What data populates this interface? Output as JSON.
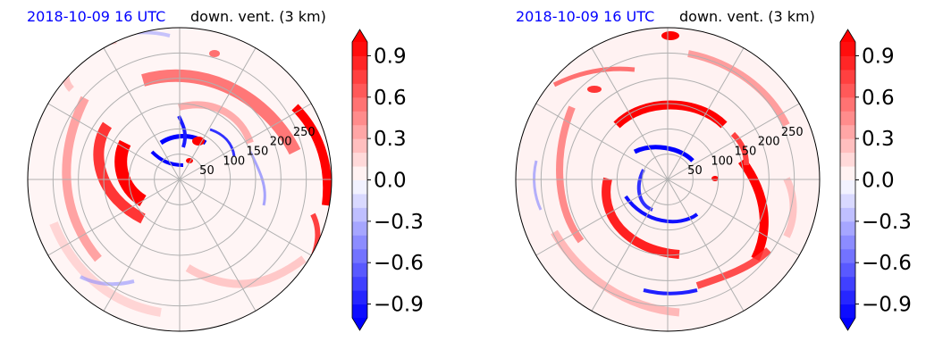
{
  "chart_data": [
    {
      "type": "polar-field",
      "title_date": "2018-10-09 16 UTC",
      "title_var": "down. vent. (3 km)",
      "radial_ticks": [
        50,
        100,
        150,
        200,
        250
      ],
      "rmax": 300,
      "angular_grid_deg": [
        0,
        30,
        60,
        90,
        120,
        150,
        180,
        210,
        240,
        270,
        300,
        330
      ],
      "colorbar": {
        "vmin": -1.0,
        "vmax": 1.0,
        "levels": 20,
        "extend": "both",
        "ticks": [
          "−0.9",
          "−0.6",
          "−0.3",
          "0.0",
          "0.3",
          "0.6",
          "0.9"
        ],
        "tick_values": [
          -0.9,
          -0.6,
          -0.3,
          0.0,
          0.3,
          0.6,
          0.9
        ],
        "colormap": "bwr",
        "low_color": "#0000ff",
        "mid_color": "#ffffff",
        "high_color": "#ff0000"
      }
    },
    {
      "type": "polar-field",
      "title_date": "2018-10-09 16 UTC",
      "title_var": "down. vent. (3 km)",
      "radial_ticks": [
        50,
        100,
        150,
        200,
        250
      ],
      "rmax": 300,
      "angular_grid_deg": [
        0,
        30,
        60,
        90,
        120,
        150,
        180,
        210,
        240,
        270,
        300,
        330
      ],
      "colorbar": {
        "vmin": -1.0,
        "vmax": 1.0,
        "levels": 20,
        "extend": "both",
        "ticks": [
          "−0.9",
          "−0.6",
          "−0.3",
          "0.0",
          "0.3",
          "0.6",
          "0.9"
        ],
        "tick_values": [
          -0.9,
          -0.6,
          -0.3,
          0.0,
          0.3,
          0.6,
          0.9
        ],
        "colormap": "bwr",
        "low_color": "#0000ff",
        "mid_color": "#ffffff",
        "high_color": "#ff0000"
      }
    }
  ]
}
